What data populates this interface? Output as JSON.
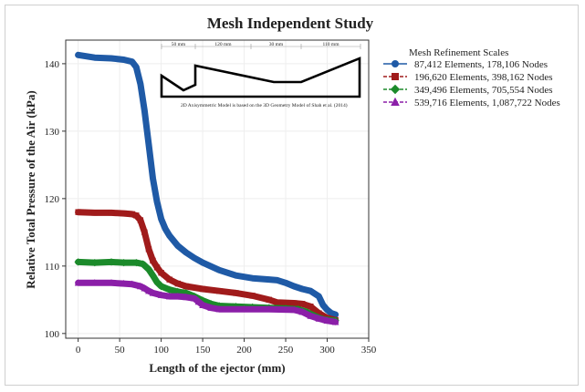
{
  "chart_data": {
    "type": "line",
    "title": "Mesh Independent Study",
    "xlabel": "Length of the ejector (mm)",
    "ylabel": "Relative Total Pressure of the Air (kPa)",
    "xlim": [
      -15,
      350
    ],
    "ylim": [
      99.3,
      143.5
    ],
    "xticks": [
      0,
      50,
      100,
      150,
      200,
      250,
      300,
      350
    ],
    "yticks": [
      100,
      110,
      120,
      130,
      140
    ],
    "grid": true,
    "legend": {
      "title": "Mesh Refinement Scales",
      "placement": "right"
    },
    "series": [
      {
        "name": "87,412 Elements, 178,106 Nodes",
        "color": "#1f5aa6",
        "marker": "circle",
        "dash": "solid",
        "points": [
          [
            0,
            141.3
          ],
          [
            20,
            140.9
          ],
          [
            40,
            140.8
          ],
          [
            55,
            140.6
          ],
          [
            65,
            140.3
          ],
          [
            70,
            139.5
          ],
          [
            75,
            137.0
          ],
          [
            80,
            133.0
          ],
          [
            85,
            128.0
          ],
          [
            90,
            123.0
          ],
          [
            95,
            119.5
          ],
          [
            100,
            117.0
          ],
          [
            105,
            115.5
          ],
          [
            110,
            114.5
          ],
          [
            120,
            113.0
          ],
          [
            130,
            112.0
          ],
          [
            140,
            111.2
          ],
          [
            150,
            110.5
          ],
          [
            170,
            109.4
          ],
          [
            190,
            108.6
          ],
          [
            210,
            108.2
          ],
          [
            230,
            108.0
          ],
          [
            240,
            107.9
          ],
          [
            250,
            107.5
          ],
          [
            260,
            107.0
          ],
          [
            270,
            106.6
          ],
          [
            280,
            106.3
          ],
          [
            290,
            105.5
          ],
          [
            295,
            104.2
          ],
          [
            300,
            103.5
          ],
          [
            305,
            103.0
          ],
          [
            310,
            102.8
          ]
        ]
      },
      {
        "name": "196,620 Elements, 398,162 Nodes",
        "color": "#a01b1b",
        "marker": "square",
        "dash": "dashed",
        "points": [
          [
            0,
            118.0
          ],
          [
            20,
            117.9
          ],
          [
            40,
            117.9
          ],
          [
            55,
            117.8
          ],
          [
            65,
            117.7
          ],
          [
            70,
            117.5
          ],
          [
            75,
            116.8
          ],
          [
            80,
            115.0
          ],
          [
            85,
            112.5
          ],
          [
            90,
            110.8
          ],
          [
            95,
            109.8
          ],
          [
            100,
            109.0
          ],
          [
            110,
            108.0
          ],
          [
            120,
            107.4
          ],
          [
            130,
            107.0
          ],
          [
            150,
            106.6
          ],
          [
            170,
            106.3
          ],
          [
            190,
            106.0
          ],
          [
            210,
            105.6
          ],
          [
            230,
            105.0
          ],
          [
            240,
            104.6
          ],
          [
            260,
            104.5
          ],
          [
            270,
            104.4
          ],
          [
            280,
            104.0
          ],
          [
            290,
            103.0
          ],
          [
            300,
            102.3
          ],
          [
            310,
            102.0
          ]
        ]
      },
      {
        "name": "349,496 Elements, 705,554 Nodes",
        "color": "#1b8a2a",
        "marker": "diamond",
        "dash": "dashed",
        "points": [
          [
            0,
            110.6
          ],
          [
            20,
            110.5
          ],
          [
            40,
            110.6
          ],
          [
            55,
            110.5
          ],
          [
            70,
            110.5
          ],
          [
            78,
            110.3
          ],
          [
            85,
            109.5
          ],
          [
            90,
            108.6
          ],
          [
            95,
            107.6
          ],
          [
            100,
            107.0
          ],
          [
            110,
            106.5
          ],
          [
            120,
            106.2
          ],
          [
            130,
            106.0
          ],
          [
            140,
            105.5
          ],
          [
            150,
            104.9
          ],
          [
            160,
            104.4
          ],
          [
            170,
            104.1
          ],
          [
            190,
            104.0
          ],
          [
            210,
            103.9
          ],
          [
            230,
            103.8
          ],
          [
            250,
            103.7
          ],
          [
            265,
            103.6
          ],
          [
            275,
            103.2
          ],
          [
            285,
            102.6
          ],
          [
            295,
            102.1
          ],
          [
            310,
            101.9
          ]
        ]
      },
      {
        "name": "539,716 Elements, 1,087,722 Nodes",
        "color": "#8b1fa8",
        "marker": "triangle",
        "dash": "dashed",
        "points": [
          [
            0,
            107.5
          ],
          [
            20,
            107.5
          ],
          [
            40,
            107.5
          ],
          [
            55,
            107.4
          ],
          [
            65,
            107.3
          ],
          [
            75,
            107.0
          ],
          [
            80,
            106.7
          ],
          [
            85,
            106.3
          ],
          [
            90,
            106.0
          ],
          [
            100,
            105.7
          ],
          [
            110,
            105.5
          ],
          [
            120,
            105.5
          ],
          [
            130,
            105.4
          ],
          [
            140,
            105.2
          ],
          [
            145,
            104.7
          ],
          [
            150,
            104.2
          ],
          [
            160,
            103.8
          ],
          [
            170,
            103.6
          ],
          [
            200,
            103.6
          ],
          [
            230,
            103.6
          ],
          [
            260,
            103.5
          ],
          [
            270,
            103.2
          ],
          [
            280,
            102.6
          ],
          [
            290,
            102.2
          ],
          [
            300,
            101.9
          ],
          [
            310,
            101.7
          ]
        ]
      }
    ],
    "inset": {
      "dimensions": [
        "50 mm",
        "120 mm",
        "30 mm",
        "110 mm"
      ],
      "caption": "2D Axisymmetric Model is based on the 3D Geometry Model of Shah et al. (2014)"
    }
  }
}
